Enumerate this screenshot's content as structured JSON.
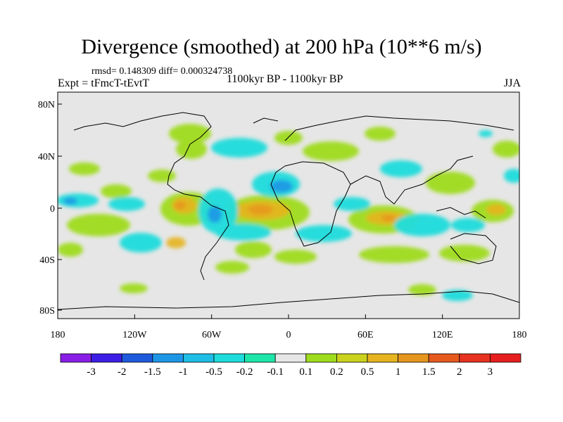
{
  "title": "Divergence (smoothed) at 200 hPa (10**6 m/s)",
  "stats": "rmsd= 0.148309 diff= 0.000324738",
  "experiment": "Expt = tFmcT-tEvtT",
  "period": "1100kyr BP - 1100kyr BP",
  "season": "JJA",
  "y_ticks": [
    "80N",
    "40N",
    "0",
    "40S",
    "80S"
  ],
  "x_ticks": [
    "180",
    "120W",
    "60W",
    "0",
    "60E",
    "120E",
    "180"
  ],
  "colorbar": {
    "labels": [
      "-3",
      "-2",
      "-1.5",
      "-1",
      "-0.5",
      "-0.2",
      "-0.1",
      "0.1",
      "0.2",
      "0.5",
      "1",
      "1.5",
      "2",
      "3"
    ],
    "colors": [
      "#8a1ee6",
      "#3c1ee6",
      "#1e5adc",
      "#1e96e6",
      "#1ebee6",
      "#1edcdc",
      "#1ee6aa",
      "#e6e6e6",
      "#a0dc1e",
      "#cad21e",
      "#e6b41e",
      "#e6961e",
      "#e65a1e",
      "#e6321e",
      "#e61e1e"
    ]
  },
  "colors": {
    "land_outline": "#000000",
    "background": "#e6e6e6"
  }
}
